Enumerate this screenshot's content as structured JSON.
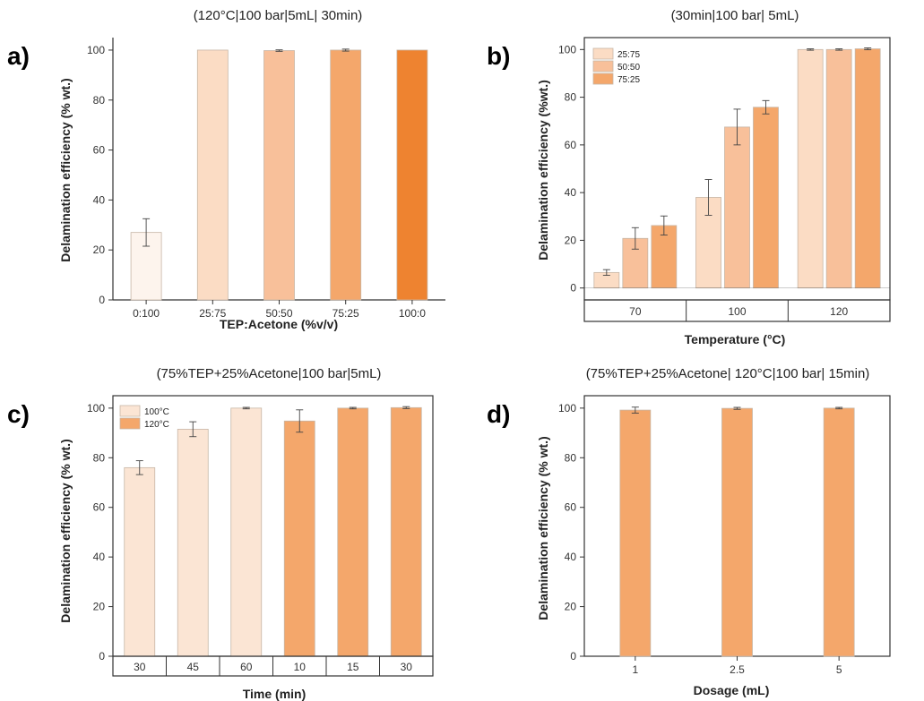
{
  "chart_data": [
    {
      "panel": "a)",
      "type": "bar",
      "title": "(120°C|100 bar|5mL| 30min)",
      "xlabel": "TEP:Acetone (%v/v)",
      "ylabel": "Delamination efficiency (% wt.)",
      "ylim": [
        0,
        105
      ],
      "yticks": [
        "0",
        "20",
        "40",
        "60",
        "80",
        "100"
      ],
      "categories": [
        "0:100",
        "25:75",
        "50:50",
        "75:25",
        "100:0"
      ],
      "series": [
        {
          "values": [
            27.0,
            100.0,
            99.8,
            100.0,
            100.0
          ],
          "errors": [
            5.5,
            0,
            0.3,
            0.4,
            0
          ],
          "colors": [
            "#fdf4ed",
            "#fbdcc4",
            "#f8c09a",
            "#f4a76b",
            "#ee8330"
          ]
        }
      ],
      "grid": false,
      "legend": "none"
    },
    {
      "panel": "b)",
      "type": "bar",
      "title": "(30min|100 bar| 5mL)",
      "xlabel": "Temperature (°C)",
      "ylabel": "Delamination efficiency (%wt.)",
      "ylim": [
        -5,
        105
      ],
      "yticks": [
        "0",
        "20",
        "40",
        "60",
        "80",
        "100"
      ],
      "categories": [
        "70",
        "100",
        "120"
      ],
      "series": [
        {
          "name": "25:75",
          "color": "#fbdcc4",
          "values": [
            6.5,
            38.0,
            100.0
          ],
          "errors": [
            1.2,
            7.5,
            0.3
          ]
        },
        {
          "name": "50:50",
          "color": "#f8c09a",
          "values": [
            20.8,
            67.5,
            100.0
          ],
          "errors": [
            4.5,
            7.5,
            0.3
          ]
        },
        {
          "name": "75:25",
          "color": "#f4a76b",
          "values": [
            26.2,
            75.8,
            100.3
          ],
          "errors": [
            4.0,
            2.8,
            0.4
          ]
        }
      ],
      "grid": false,
      "legend": "top-left"
    },
    {
      "panel": "c)",
      "type": "bar",
      "title": "(75%TEP+25%Acetone|100 bar|5mL)",
      "xlabel": "Time (min)",
      "ylabel": "Delamination efficiency (% wt.)",
      "ylim": [
        0,
        105
      ],
      "yticks": [
        "0",
        "20",
        "40",
        "60",
        "80",
        "100"
      ],
      "categories": [
        "30",
        "45",
        "60",
        "10",
        "15",
        "30"
      ],
      "series": [
        {
          "name": "100°C",
          "color": "#fbe5d4",
          "values": [
            76.0,
            91.5,
            100.0,
            null,
            null,
            null
          ],
          "errors": [
            2.8,
            3.0,
            0.3,
            0,
            0,
            0
          ]
        },
        {
          "name": "120°C",
          "color": "#f4a76b",
          "values": [
            null,
            null,
            null,
            94.8,
            100.0,
            100.2
          ],
          "errors": [
            0,
            0,
            0,
            4.5,
            0.3,
            0.4
          ]
        }
      ],
      "grid": false,
      "legend": "top-left"
    },
    {
      "panel": "d)",
      "type": "bar",
      "title": "(75%TEP+25%Acetone| 120°C|100 bar| 15min)",
      "xlabel": "Dosage (mL)",
      "ylabel": "Delamination efficiency (% wt.)",
      "ylim": [
        0,
        105
      ],
      "yticks": [
        "0",
        "20",
        "40",
        "60",
        "80",
        "100"
      ],
      "categories": [
        "1",
        "2.5",
        "5"
      ],
      "series": [
        {
          "color": "#f4a76b",
          "values": [
            99.2,
            99.9,
            100.0
          ],
          "errors": [
            1.2,
            0.4,
            0.3
          ]
        }
      ],
      "grid": false,
      "legend": "none"
    }
  ],
  "colors": {
    "axis": "#333333",
    "errorbar": "#444444"
  }
}
